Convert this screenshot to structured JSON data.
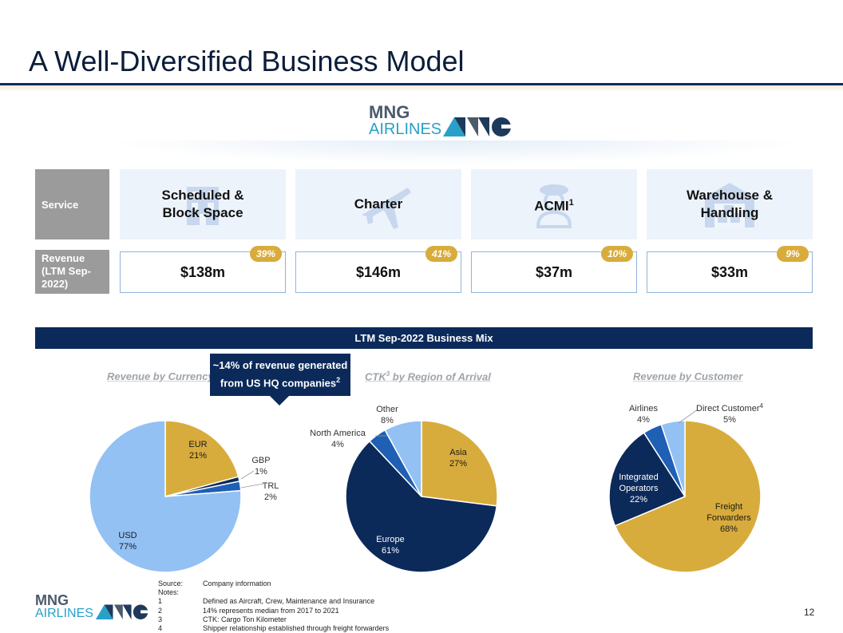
{
  "title": "A Well-Diversified Business Model",
  "logo": {
    "line1": "MNG",
    "line2": "AIRLINES"
  },
  "service_label": "Service",
  "revenue_label": "Revenue (LTM Sep-2022)",
  "services": [
    {
      "name": "Scheduled & Block Space",
      "icon": "building-icon",
      "revenue": "$138m",
      "pct": "39%"
    },
    {
      "name": "Charter",
      "icon": "airplane-icon",
      "revenue": "$146m",
      "pct": "41%"
    },
    {
      "name": "ACMI",
      "name_sup": "1",
      "icon": "pilot-icon",
      "revenue": "$37m",
      "pct": "10%"
    },
    {
      "name": "Warehouse & Handling",
      "icon": "warehouse-icon",
      "revenue": "$33m",
      "pct": "9%"
    }
  ],
  "mix_title": "LTM Sep-2022 Business Mix",
  "callout": {
    "line1": "~14% of revenue generated",
    "line2": "from US HQ companies",
    "sup": "2"
  },
  "colors": {
    "navy": "#0b2a5a",
    "gold": "#d8ac3c",
    "light_blue": "#93c1f4",
    "mid_blue": "#1f5fb4",
    "badge": "#d8ac3c"
  },
  "chart_data": [
    {
      "type": "pie",
      "title": "Revenue by Currency",
      "slices": [
        {
          "name": "EUR",
          "value": 21,
          "label": "21%",
          "color": "#d8ac3c"
        },
        {
          "name": "GBP",
          "value": 1,
          "label": "1%",
          "color": "#0b2a5a"
        },
        {
          "name": "TRL",
          "value": 2,
          "label": "2%",
          "color": "#1f5fb4"
        },
        {
          "name": "USD",
          "value": 77,
          "label": "77%",
          "color": "#93c1f4"
        }
      ]
    },
    {
      "type": "pie",
      "title": "CTK",
      "title_sup": "3",
      "title_rest": " by Region of Arrival",
      "slices": [
        {
          "name": "Asia",
          "value": 27,
          "label": "27%",
          "color": "#d8ac3c"
        },
        {
          "name": "Europe",
          "value": 61,
          "label": "61%",
          "color": "#0b2a5a"
        },
        {
          "name": "North America",
          "value": 4,
          "label": "4%",
          "color": "#1f5fb4"
        },
        {
          "name": "Other",
          "value": 8,
          "label": "8%",
          "color": "#93c1f4"
        }
      ]
    },
    {
      "type": "pie",
      "title": "Revenue by Customer",
      "slices": [
        {
          "name": "Freight Forwarders",
          "value": 68,
          "label": "68%",
          "color": "#d8ac3c"
        },
        {
          "name": "Integrated Operators",
          "value": 22,
          "label": "22%",
          "color": "#0b2a5a"
        },
        {
          "name": "Airlines",
          "value": 4,
          "label": "4%",
          "color": "#1f5fb4"
        },
        {
          "name": "Direct Customer",
          "name_sup": "4",
          "value": 5,
          "label": "5%",
          "color": "#93c1f4"
        }
      ]
    }
  ],
  "notes": [
    {
      "key": "Source:",
      "text": "Company information"
    },
    {
      "key": "Notes:",
      "text": ""
    },
    {
      "key": "1",
      "text": "Defined as Aircraft, Crew, Maintenance and Insurance"
    },
    {
      "key": "2",
      "text": "14% represents median from 2017 to 2021"
    },
    {
      "key": "3",
      "text": "CTK: Cargo Ton Kilometer"
    },
    {
      "key": "4",
      "text": "Shipper relationship established through freight forwarders"
    }
  ],
  "page_number": "12"
}
